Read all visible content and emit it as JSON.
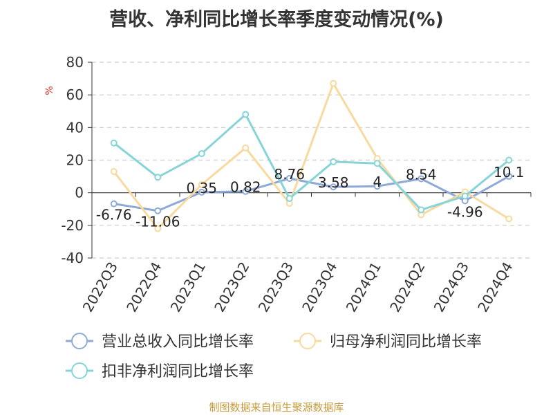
{
  "title": "营收、净利同比增长率季度变动情况(%)",
  "footer": "制图数据来自恒生聚源数据库",
  "chart_data": {
    "type": "line",
    "title": "营收、净利同比增长率季度变动情况(%)",
    "ylabel": "%",
    "ylim": [
      -40,
      80
    ],
    "yticks": [
      80,
      60,
      40,
      20,
      0,
      -20,
      -40
    ],
    "grid": true,
    "legend_position": "bottom-left",
    "categories": [
      "2022Q3",
      "2022Q4",
      "2023Q1",
      "2023Q2",
      "2023Q3",
      "2023Q4",
      "2024Q1",
      "2024Q2",
      "2024Q3",
      "2024Q4"
    ],
    "series": [
      {
        "name": "营业总收入同比增长率",
        "color": "#8ea9d8",
        "values": [
          -6.76,
          -11.06,
          0.35,
          0.82,
          8.76,
          3.58,
          4,
          8.54,
          -4.96,
          10.1
        ],
        "labels": [
          "-6.76",
          "-11.06",
          "0.35",
          "0.82",
          "8.76",
          "3.58",
          "4",
          "8.54",
          "-4.96",
          "10.1"
        ]
      },
      {
        "name": "归母净利润同比增长率",
        "color": "#f8d99e",
        "values": [
          13,
          -22,
          5,
          27.5,
          -6.5,
          67,
          21,
          -13.5,
          0.5,
          -16
        ]
      },
      {
        "name": "扣非净利润同比增长率",
        "color": "#86d4d8",
        "values": [
          30.5,
          9.5,
          24,
          48,
          -3.5,
          19,
          18,
          -10.5,
          -2,
          20
        ]
      }
    ]
  }
}
